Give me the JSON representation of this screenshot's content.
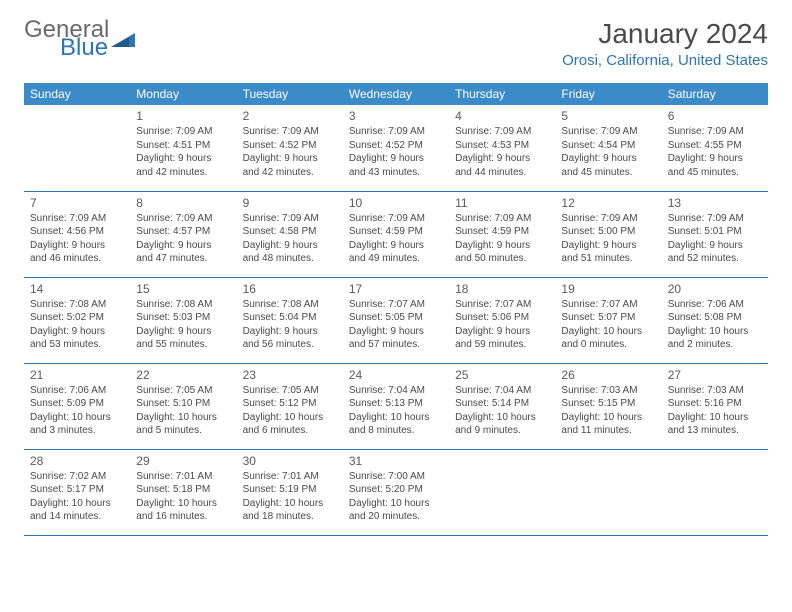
{
  "logo": {
    "word1": "General",
    "word2": "Blue"
  },
  "title": "January 2024",
  "location": "Orosi, California, United States",
  "header_bg": "#3b8bc9",
  "rule_color": "#2e75b6",
  "text_color": "#4a4a4a",
  "days_of_week": [
    "Sunday",
    "Monday",
    "Tuesday",
    "Wednesday",
    "Thursday",
    "Friday",
    "Saturday"
  ],
  "weeks": [
    [
      null,
      {
        "n": "1",
        "sr": "Sunrise: 7:09 AM",
        "ss": "Sunset: 4:51 PM",
        "d1": "Daylight: 9 hours",
        "d2": "and 42 minutes."
      },
      {
        "n": "2",
        "sr": "Sunrise: 7:09 AM",
        "ss": "Sunset: 4:52 PM",
        "d1": "Daylight: 9 hours",
        "d2": "and 42 minutes."
      },
      {
        "n": "3",
        "sr": "Sunrise: 7:09 AM",
        "ss": "Sunset: 4:52 PM",
        "d1": "Daylight: 9 hours",
        "d2": "and 43 minutes."
      },
      {
        "n": "4",
        "sr": "Sunrise: 7:09 AM",
        "ss": "Sunset: 4:53 PM",
        "d1": "Daylight: 9 hours",
        "d2": "and 44 minutes."
      },
      {
        "n": "5",
        "sr": "Sunrise: 7:09 AM",
        "ss": "Sunset: 4:54 PM",
        "d1": "Daylight: 9 hours",
        "d2": "and 45 minutes."
      },
      {
        "n": "6",
        "sr": "Sunrise: 7:09 AM",
        "ss": "Sunset: 4:55 PM",
        "d1": "Daylight: 9 hours",
        "d2": "and 45 minutes."
      }
    ],
    [
      {
        "n": "7",
        "sr": "Sunrise: 7:09 AM",
        "ss": "Sunset: 4:56 PM",
        "d1": "Daylight: 9 hours",
        "d2": "and 46 minutes."
      },
      {
        "n": "8",
        "sr": "Sunrise: 7:09 AM",
        "ss": "Sunset: 4:57 PM",
        "d1": "Daylight: 9 hours",
        "d2": "and 47 minutes."
      },
      {
        "n": "9",
        "sr": "Sunrise: 7:09 AM",
        "ss": "Sunset: 4:58 PM",
        "d1": "Daylight: 9 hours",
        "d2": "and 48 minutes."
      },
      {
        "n": "10",
        "sr": "Sunrise: 7:09 AM",
        "ss": "Sunset: 4:59 PM",
        "d1": "Daylight: 9 hours",
        "d2": "and 49 minutes."
      },
      {
        "n": "11",
        "sr": "Sunrise: 7:09 AM",
        "ss": "Sunset: 4:59 PM",
        "d1": "Daylight: 9 hours",
        "d2": "and 50 minutes."
      },
      {
        "n": "12",
        "sr": "Sunrise: 7:09 AM",
        "ss": "Sunset: 5:00 PM",
        "d1": "Daylight: 9 hours",
        "d2": "and 51 minutes."
      },
      {
        "n": "13",
        "sr": "Sunrise: 7:09 AM",
        "ss": "Sunset: 5:01 PM",
        "d1": "Daylight: 9 hours",
        "d2": "and 52 minutes."
      }
    ],
    [
      {
        "n": "14",
        "sr": "Sunrise: 7:08 AM",
        "ss": "Sunset: 5:02 PM",
        "d1": "Daylight: 9 hours",
        "d2": "and 53 minutes."
      },
      {
        "n": "15",
        "sr": "Sunrise: 7:08 AM",
        "ss": "Sunset: 5:03 PM",
        "d1": "Daylight: 9 hours",
        "d2": "and 55 minutes."
      },
      {
        "n": "16",
        "sr": "Sunrise: 7:08 AM",
        "ss": "Sunset: 5:04 PM",
        "d1": "Daylight: 9 hours",
        "d2": "and 56 minutes."
      },
      {
        "n": "17",
        "sr": "Sunrise: 7:07 AM",
        "ss": "Sunset: 5:05 PM",
        "d1": "Daylight: 9 hours",
        "d2": "and 57 minutes."
      },
      {
        "n": "18",
        "sr": "Sunrise: 7:07 AM",
        "ss": "Sunset: 5:06 PM",
        "d1": "Daylight: 9 hours",
        "d2": "and 59 minutes."
      },
      {
        "n": "19",
        "sr": "Sunrise: 7:07 AM",
        "ss": "Sunset: 5:07 PM",
        "d1": "Daylight: 10 hours",
        "d2": "and 0 minutes."
      },
      {
        "n": "20",
        "sr": "Sunrise: 7:06 AM",
        "ss": "Sunset: 5:08 PM",
        "d1": "Daylight: 10 hours",
        "d2": "and 2 minutes."
      }
    ],
    [
      {
        "n": "21",
        "sr": "Sunrise: 7:06 AM",
        "ss": "Sunset: 5:09 PM",
        "d1": "Daylight: 10 hours",
        "d2": "and 3 minutes."
      },
      {
        "n": "22",
        "sr": "Sunrise: 7:05 AM",
        "ss": "Sunset: 5:10 PM",
        "d1": "Daylight: 10 hours",
        "d2": "and 5 minutes."
      },
      {
        "n": "23",
        "sr": "Sunrise: 7:05 AM",
        "ss": "Sunset: 5:12 PM",
        "d1": "Daylight: 10 hours",
        "d2": "and 6 minutes."
      },
      {
        "n": "24",
        "sr": "Sunrise: 7:04 AM",
        "ss": "Sunset: 5:13 PM",
        "d1": "Daylight: 10 hours",
        "d2": "and 8 minutes."
      },
      {
        "n": "25",
        "sr": "Sunrise: 7:04 AM",
        "ss": "Sunset: 5:14 PM",
        "d1": "Daylight: 10 hours",
        "d2": "and 9 minutes."
      },
      {
        "n": "26",
        "sr": "Sunrise: 7:03 AM",
        "ss": "Sunset: 5:15 PM",
        "d1": "Daylight: 10 hours",
        "d2": "and 11 minutes."
      },
      {
        "n": "27",
        "sr": "Sunrise: 7:03 AM",
        "ss": "Sunset: 5:16 PM",
        "d1": "Daylight: 10 hours",
        "d2": "and 13 minutes."
      }
    ],
    [
      {
        "n": "28",
        "sr": "Sunrise: 7:02 AM",
        "ss": "Sunset: 5:17 PM",
        "d1": "Daylight: 10 hours",
        "d2": "and 14 minutes."
      },
      {
        "n": "29",
        "sr": "Sunrise: 7:01 AM",
        "ss": "Sunset: 5:18 PM",
        "d1": "Daylight: 10 hours",
        "d2": "and 16 minutes."
      },
      {
        "n": "30",
        "sr": "Sunrise: 7:01 AM",
        "ss": "Sunset: 5:19 PM",
        "d1": "Daylight: 10 hours",
        "d2": "and 18 minutes."
      },
      {
        "n": "31",
        "sr": "Sunrise: 7:00 AM",
        "ss": "Sunset: 5:20 PM",
        "d1": "Daylight: 10 hours",
        "d2": "and 20 minutes."
      },
      null,
      null,
      null
    ]
  ]
}
